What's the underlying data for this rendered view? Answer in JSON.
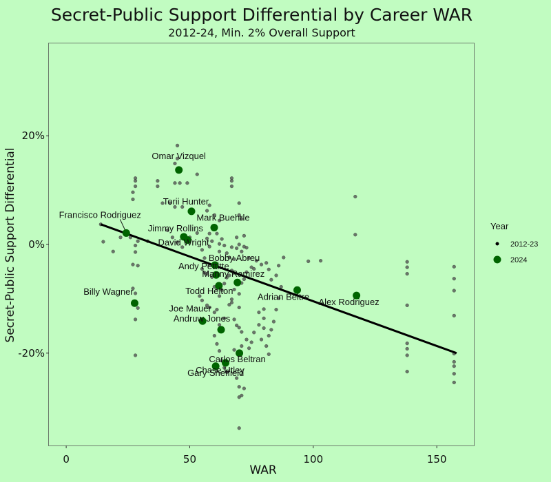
{
  "chart_data": {
    "type": "scatter",
    "title": "Secret-Public Support Differential by Career WAR",
    "subtitle": "2012-24, Min. 2% Overall Support",
    "xlabel": "WAR",
    "ylabel": "Secret-Public Support Differential",
    "xlim": [
      -7,
      165
    ],
    "ylim": [
      -37,
      37
    ],
    "x_ticks": [
      {
        "value": 0,
        "label": "0"
      },
      {
        "value": 50,
        "label": "50"
      },
      {
        "value": 100,
        "label": "100"
      },
      {
        "value": 150,
        "label": "150"
      }
    ],
    "y_ticks": [
      {
        "value": 20,
        "label": "20%"
      },
      {
        "value": 0,
        "label": "0%"
      },
      {
        "value": -20,
        "label": "-20%"
      }
    ],
    "grid": false,
    "legend": {
      "title": "Year",
      "position": "right",
      "entries": [
        {
          "label": "2012-23",
          "color": "#000000"
        },
        {
          "label": "2024",
          "color": "#006400"
        }
      ]
    },
    "trend_line": {
      "x": [
        14,
        158
      ],
      "y": [
        3.7,
        -20.0
      ]
    },
    "series": [
      {
        "name": "2012-23",
        "color": "#4a4a4a",
        "points": [
          [
            45,
            18.2
          ],
          [
            45,
            15.8
          ],
          [
            44,
            14.9
          ],
          [
            28,
            12.2
          ],
          [
            28,
            11.7
          ],
          [
            28,
            10.7
          ],
          [
            37,
            11.7
          ],
          [
            37,
            10.7
          ],
          [
            44,
            11.3
          ],
          [
            46,
            11.3
          ],
          [
            49,
            11.3
          ],
          [
            53,
            12.9
          ],
          [
            46,
            13.9
          ],
          [
            27,
            9.6
          ],
          [
            27,
            8.3
          ],
          [
            39,
            7.6
          ],
          [
            42,
            7.6
          ],
          [
            44,
            6.9
          ],
          [
            47,
            6.9
          ],
          [
            51,
            6.4
          ],
          [
            57,
            6.2
          ],
          [
            58,
            7.2
          ],
          [
            60,
            5.4
          ],
          [
            62,
            4.4
          ],
          [
            70,
            7.6
          ],
          [
            70,
            5.4
          ],
          [
            71,
            4.7
          ],
          [
            67,
            10.7
          ],
          [
            67,
            11.7
          ],
          [
            67,
            12.2
          ],
          [
            117,
            8.8
          ],
          [
            117,
            1.8
          ],
          [
            14,
            3.7
          ],
          [
            15,
            0.5
          ],
          [
            19,
            -1.3
          ],
          [
            22,
            1.3
          ],
          [
            26,
            1.3
          ],
          [
            28,
            -0.2
          ],
          [
            29,
            0.6
          ],
          [
            33,
            0.6
          ],
          [
            27,
            -3.7
          ],
          [
            29,
            -3.9
          ],
          [
            27,
            -8.1
          ],
          [
            28,
            -9.0
          ],
          [
            29,
            -11.7
          ],
          [
            28,
            -13.8
          ],
          [
            28,
            -20.4
          ],
          [
            41,
            2.6
          ],
          [
            43,
            1.3
          ],
          [
            45,
            0.4
          ],
          [
            47,
            -0.5
          ],
          [
            50,
            1.3
          ],
          [
            53,
            2.1
          ],
          [
            55,
            -1.0
          ],
          [
            56,
            -2.5
          ],
          [
            57,
            1.1
          ],
          [
            58,
            2.0
          ],
          [
            58,
            -0.4
          ],
          [
            59,
            0.6
          ],
          [
            60,
            3.1
          ],
          [
            61,
            2.0
          ],
          [
            62,
            0.1
          ],
          [
            62,
            -1.3
          ],
          [
            63,
            1.0
          ],
          [
            64,
            -0.2
          ],
          [
            65,
            -1.6
          ],
          [
            66,
            -2.4
          ],
          [
            67,
            -0.5
          ],
          [
            68,
            -2.7
          ],
          [
            69,
            1.3
          ],
          [
            69,
            -0.7
          ],
          [
            70,
            0.0
          ],
          [
            71,
            -1.3
          ],
          [
            72,
            1.6
          ],
          [
            72,
            -0.4
          ],
          [
            73,
            -0.6
          ],
          [
            74,
            -2.5
          ],
          [
            75,
            -4.2
          ],
          [
            76,
            -4.5
          ],
          [
            77,
            -3.0
          ],
          [
            79,
            -3.7
          ],
          [
            81,
            -3.4
          ],
          [
            55,
            -4.5
          ],
          [
            56,
            -5.2
          ],
          [
            57,
            -5.4
          ],
          [
            58,
            -3.8
          ],
          [
            59,
            -6.0
          ],
          [
            60,
            -7.8
          ],
          [
            61,
            -8.1
          ],
          [
            62,
            -9.5
          ],
          [
            63,
            -8.4
          ],
          [
            64,
            -7.2
          ],
          [
            65,
            -6.1
          ],
          [
            66,
            -5.7
          ],
          [
            67,
            -4.8
          ],
          [
            67,
            -10.1
          ],
          [
            68,
            -8.3
          ],
          [
            70,
            -9.1
          ],
          [
            71,
            -7.1
          ],
          [
            72,
            -6.4
          ],
          [
            73,
            -5.1
          ],
          [
            54,
            -9.5
          ],
          [
            55,
            -10.3
          ],
          [
            57,
            -11.2
          ],
          [
            58,
            -11.6
          ],
          [
            60,
            -12.5
          ],
          [
            61,
            -12.0
          ],
          [
            62,
            -14.8
          ],
          [
            63,
            -15.6
          ],
          [
            64,
            -13.6
          ],
          [
            66,
            -11.1
          ],
          [
            67,
            -10.7
          ],
          [
            68,
            -13.8
          ],
          [
            69,
            -14.9
          ],
          [
            70,
            -11.6
          ],
          [
            70,
            -15.3
          ],
          [
            71,
            -16.1
          ],
          [
            71,
            -18.7
          ],
          [
            73,
            -17.5
          ],
          [
            74,
            -19.1
          ],
          [
            75,
            -18.0
          ],
          [
            76,
            -16.2
          ],
          [
            78,
            -12.5
          ],
          [
            78,
            -14.8
          ],
          [
            79,
            -17.5
          ],
          [
            80,
            -15.4
          ],
          [
            80,
            -13.6
          ],
          [
            80,
            -11.9
          ],
          [
            81,
            -18.7
          ],
          [
            82,
            -20.2
          ],
          [
            82,
            -16.8
          ],
          [
            83,
            -15.7
          ],
          [
            84,
            -14.2
          ],
          [
            85,
            -12.0
          ],
          [
            86,
            -9.9
          ],
          [
            87,
            -7.8
          ],
          [
            60,
            -16.8
          ],
          [
            61,
            -18.3
          ],
          [
            62,
            -19.6
          ],
          [
            63,
            -21.4
          ],
          [
            64,
            -22.7
          ],
          [
            65,
            -23.5
          ],
          [
            68,
            -19.4
          ],
          [
            69,
            -24.6
          ],
          [
            70,
            -26.2
          ],
          [
            70,
            -28.1
          ],
          [
            71,
            -27.8
          ],
          [
            72,
            -26.5
          ],
          [
            70,
            -33.8
          ],
          [
            82,
            -4.6
          ],
          [
            83,
            -6.5
          ],
          [
            85,
            -5.7
          ],
          [
            86,
            -3.9
          ],
          [
            88,
            -2.4
          ],
          [
            98,
            -3.1
          ],
          [
            103,
            -3.0
          ],
          [
            138,
            -3.2
          ],
          [
            138,
            -4.2
          ],
          [
            138,
            -5.4
          ],
          [
            138,
            -11.2
          ],
          [
            138,
            -18.2
          ],
          [
            138,
            -19.2
          ],
          [
            138,
            -20.4
          ],
          [
            138,
            -23.4
          ],
          [
            157,
            -4.1
          ],
          [
            157,
            -6.3
          ],
          [
            157,
            -8.5
          ],
          [
            157,
            -13.1
          ],
          [
            157,
            -20.1
          ],
          [
            157,
            -21.6
          ],
          [
            157,
            -22.4
          ],
          [
            157,
            -23.8
          ],
          [
            157,
            -25.4
          ],
          [
            28,
            -1.4
          ]
        ]
      },
      {
        "name": "2024",
        "color": "#006400",
        "points": [
          {
            "name": "Omar Vizquel",
            "x": 45.6,
            "y": 13.7
          },
          {
            "name": "Torii Hunter",
            "x": 50.7,
            "y": 6.1
          },
          {
            "name": "Mark Buehrle",
            "x": 59.9,
            "y": 3.1
          },
          {
            "name": "Francisco Rodriguez",
            "x": 24.3,
            "y": 2.1
          },
          {
            "name": "Jimmy Rollins",
            "x": 47.6,
            "y": 1.4
          },
          {
            "name": "David Wright",
            "x": 49.2,
            "y": 0.8
          },
          {
            "name": "Bobby Abreu",
            "x": 60.2,
            "y": -3.8
          },
          {
            "name": "Andy Pettitte",
            "x": 60.7,
            "y": -5.6
          },
          {
            "name": "Manny Ramirez",
            "x": 69.3,
            "y": -7.0
          },
          {
            "name": "Todd Helton",
            "x": 61.8,
            "y": -7.6
          },
          {
            "name": "Adrian Beltre",
            "x": 93.5,
            "y": -8.4
          },
          {
            "name": "Alex Rodriguez",
            "x": 117.5,
            "y": -9.4
          },
          {
            "name": "Billy Wagner",
            "x": 27.7,
            "y": -10.8
          },
          {
            "name": "Joe Mauer",
            "x": 55.2,
            "y": -14.1
          },
          {
            "name": "Andruw Jones",
            "x": 62.7,
            "y": -15.7
          },
          {
            "name": "Carlos Beltran",
            "x": 70.1,
            "y": -20.0
          },
          {
            "name": "Chase Utley",
            "x": 64.5,
            "y": -21.8
          },
          {
            "name": "Gary Sheffield",
            "x": 60.5,
            "y": -22.4
          }
        ]
      }
    ]
  }
}
